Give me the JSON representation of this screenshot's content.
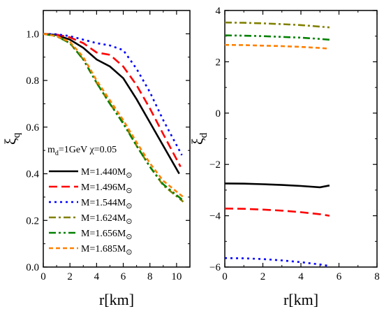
{
  "colors": {
    "M1": "#000000",
    "M2": "#ff0000",
    "M3": "#0000ff",
    "M4": "#808000",
    "M5": "#008000",
    "M6": "#ff8000"
  },
  "chart_data": [
    {
      "type": "line",
      "panel": "left",
      "xlabel": "r[km]",
      "ylabel": "ξ_q",
      "xlim": [
        0,
        11
      ],
      "ylim": [
        0.0,
        1.1
      ],
      "xticks": [
        0,
        2,
        4,
        6,
        8,
        10
      ],
      "xtick_labels": [
        "0",
        "2",
        "4",
        "6",
        "8",
        "10"
      ],
      "yticks": [
        0.0,
        0.2,
        0.4,
        0.6,
        0.8,
        1.0
      ],
      "ytick_labels": [
        "0.0",
        "0.2",
        "0.4",
        "0.6",
        "0.8",
        "1.0"
      ],
      "annotation": {
        "m_main": "m",
        "m_sub": "d",
        "rest": "=1GeV χ=0.05"
      },
      "legend_position": "lower-left",
      "series": [
        {
          "key": "M1",
          "label": "M=1.440M",
          "label_sub": "⊙",
          "dash": "",
          "x": [
            0,
            1,
            2,
            3,
            4,
            5,
            6,
            7,
            8,
            9,
            10.2
          ],
          "y": [
            1.0,
            0.995,
            0.975,
            0.94,
            0.89,
            0.86,
            0.81,
            0.72,
            0.62,
            0.52,
            0.4
          ]
        },
        {
          "key": "M2",
          "label": "M=1.496M",
          "label_sub": "⊙",
          "dash": "12,6",
          "x": [
            0,
            1,
            2,
            3,
            4,
            5,
            6,
            7,
            8,
            9,
            10.3
          ],
          "y": [
            1.0,
            0.997,
            0.985,
            0.96,
            0.92,
            0.91,
            0.86,
            0.78,
            0.68,
            0.57,
            0.43
          ]
        },
        {
          "key": "M3",
          "label": "M=1.544M",
          "label_sub": "⊙",
          "dash": "3,5",
          "x": [
            0,
            1,
            2,
            3,
            4,
            5,
            6,
            7,
            8,
            9,
            10.4
          ],
          "y": [
            1.0,
            0.998,
            0.99,
            0.975,
            0.96,
            0.95,
            0.93,
            0.85,
            0.75,
            0.63,
            0.48
          ]
        },
        {
          "key": "M4",
          "label": "M=1.624M",
          "label_sub": "⊙",
          "dash": "10,4,3,4",
          "x": [
            0,
            1,
            2,
            3,
            4,
            5,
            6,
            7,
            8,
            9,
            10.5
          ],
          "y": [
            1.0,
            0.99,
            0.96,
            0.89,
            0.79,
            0.7,
            0.62,
            0.52,
            0.43,
            0.35,
            0.28
          ]
        },
        {
          "key": "M5",
          "label": "M=1.656M",
          "label_sub": "⊙",
          "dash": "10,4,3,4,3,4",
          "x": [
            0,
            1,
            2,
            3,
            4,
            5,
            6,
            7,
            8,
            9,
            10.5
          ],
          "y": [
            1.0,
            0.99,
            0.96,
            0.89,
            0.79,
            0.7,
            0.615,
            0.52,
            0.43,
            0.355,
            0.285
          ]
        },
        {
          "key": "M6",
          "label": "M=1.685M",
          "label_sub": "⊙",
          "dash": "6,4",
          "x": [
            0,
            1,
            2,
            3,
            4,
            5,
            6,
            7,
            8,
            9,
            10.5
          ],
          "y": [
            1.0,
            0.99,
            0.965,
            0.9,
            0.8,
            0.715,
            0.63,
            0.535,
            0.445,
            0.37,
            0.3
          ]
        }
      ]
    },
    {
      "type": "line",
      "panel": "right",
      "xlabel": "r[km]",
      "ylabel": "ξ_d",
      "xlim": [
        0,
        8
      ],
      "ylim": [
        -6,
        4
      ],
      "xticks": [
        0,
        2,
        4,
        6,
        8
      ],
      "xtick_labels": [
        "0",
        "2",
        "4",
        "6",
        "8"
      ],
      "yticks": [
        -6,
        -4,
        -2,
        0,
        2,
        4
      ],
      "ytick_labels": [
        "−6",
        "−4",
        "−2",
        "0",
        "2",
        "4"
      ],
      "series": [
        {
          "key": "M1",
          "dash": "",
          "x": [
            0,
            1,
            2,
            3,
            4,
            5,
            5.5
          ],
          "y": [
            -2.74,
            -2.75,
            -2.77,
            -2.8,
            -2.84,
            -2.89,
            -2.82
          ]
        },
        {
          "key": "M2",
          "dash": "12,6",
          "x": [
            0,
            1,
            2,
            3,
            4,
            5,
            5.5
          ],
          "y": [
            -3.72,
            -3.73,
            -3.76,
            -3.8,
            -3.86,
            -3.94,
            -4.0
          ]
        },
        {
          "key": "M3",
          "dash": "3,5",
          "x": [
            0,
            1,
            2,
            3,
            4,
            5,
            5.5
          ],
          "y": [
            -5.65,
            -5.66,
            -5.69,
            -5.74,
            -5.81,
            -5.9,
            -5.96
          ]
        },
        {
          "key": "M4",
          "dash": "10,4,3,4",
          "x": [
            0,
            1,
            2,
            3,
            4,
            5,
            5.5
          ],
          "y": [
            3.53,
            3.52,
            3.5,
            3.47,
            3.43,
            3.37,
            3.34
          ]
        },
        {
          "key": "M5",
          "dash": "10,4,3,4,3,4",
          "x": [
            0,
            1,
            2,
            3,
            4,
            5,
            5.5
          ],
          "y": [
            3.03,
            3.02,
            3.0,
            2.97,
            2.94,
            2.89,
            2.86
          ]
        },
        {
          "key": "M6",
          "dash": "6,4",
          "x": [
            0,
            1,
            2,
            3,
            4,
            5,
            5.5
          ],
          "y": [
            2.66,
            2.65,
            2.63,
            2.61,
            2.58,
            2.54,
            2.51
          ]
        }
      ]
    }
  ]
}
